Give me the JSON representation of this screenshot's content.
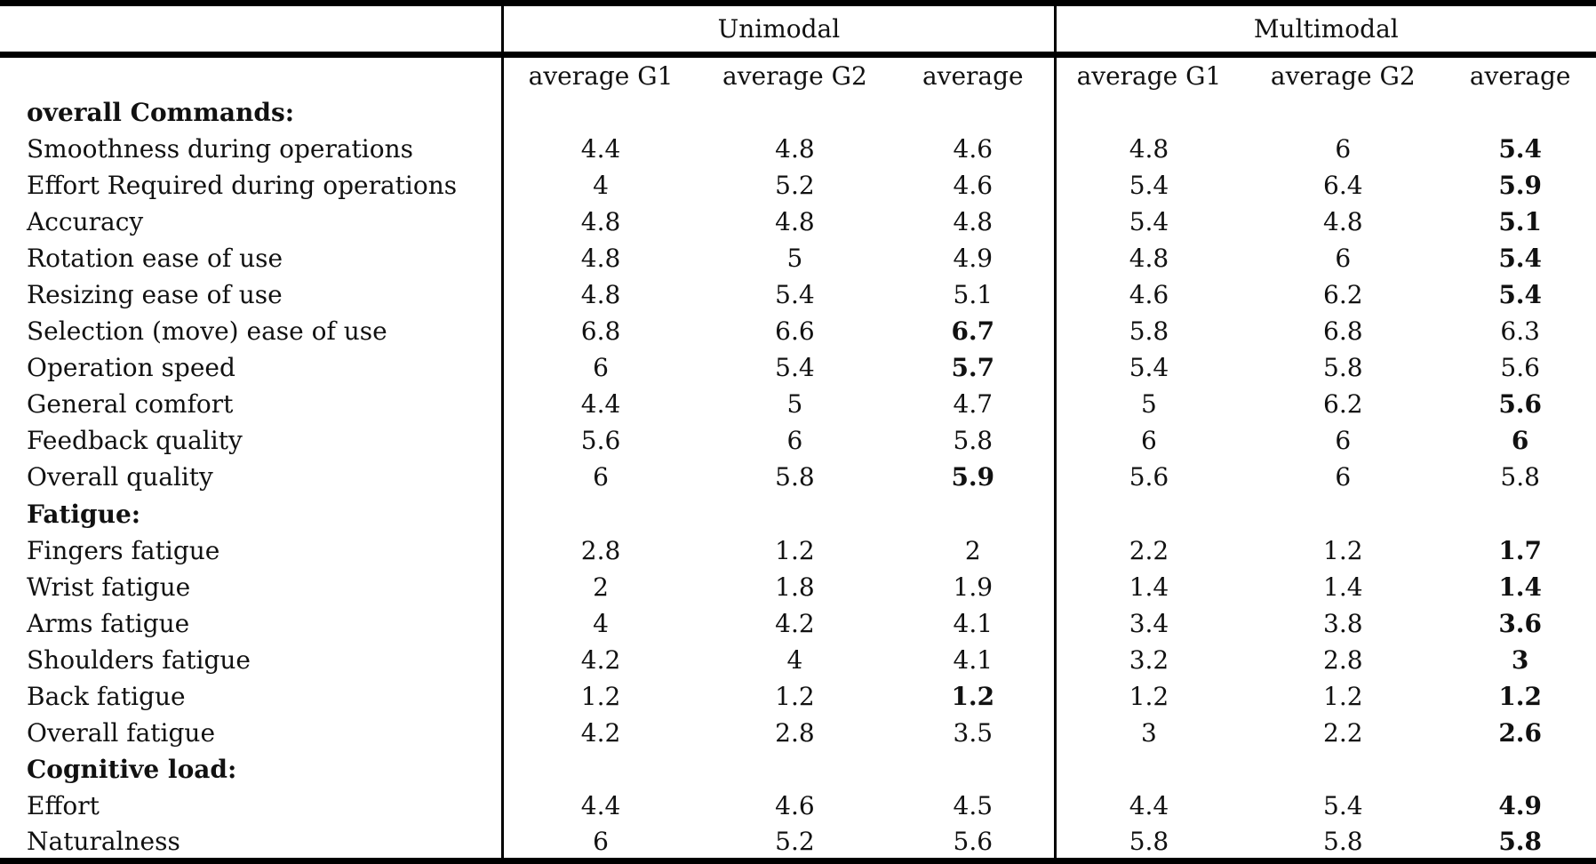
{
  "table": {
    "group_headers": [
      "Unimodal",
      "Multimodal"
    ],
    "sub_headers": [
      "average G1",
      "average G2",
      "average",
      "average G1",
      "average G2",
      "average"
    ],
    "sections": [
      {
        "header": "overall Commands:",
        "rows": [
          {
            "label": "Smoothness during operations",
            "values": [
              "4.4",
              "4.8",
              "4.6",
              "4.8",
              "6",
              "5.4"
            ],
            "bold": [
              false,
              false,
              false,
              false,
              false,
              true
            ]
          },
          {
            "label": "Effort Required during operations",
            "values": [
              "4",
              "5.2",
              "4.6",
              "5.4",
              "6.4",
              "5.9"
            ],
            "bold": [
              false,
              false,
              false,
              false,
              false,
              true
            ]
          },
          {
            "label": "Accuracy",
            "values": [
              "4.8",
              "4.8",
              "4.8",
              "5.4",
              "4.8",
              "5.1"
            ],
            "bold": [
              false,
              false,
              false,
              false,
              false,
              true
            ]
          },
          {
            "label": "Rotation ease of use",
            "values": [
              "4.8",
              "5",
              "4.9",
              "4.8",
              "6",
              "5.4"
            ],
            "bold": [
              false,
              false,
              false,
              false,
              false,
              true
            ]
          },
          {
            "label": "Resizing ease of use",
            "values": [
              "4.8",
              "5.4",
              "5.1",
              "4.6",
              "6.2",
              "5.4"
            ],
            "bold": [
              false,
              false,
              false,
              false,
              false,
              true
            ]
          },
          {
            "label": "Selection (move) ease of use",
            "values": [
              "6.8",
              "6.6",
              "6.7",
              "5.8",
              "6.8",
              "6.3"
            ],
            "bold": [
              false,
              false,
              true,
              false,
              false,
              false
            ]
          },
          {
            "label": "Operation speed",
            "values": [
              "6",
              "5.4",
              "5.7",
              "5.4",
              "5.8",
              "5.6"
            ],
            "bold": [
              false,
              false,
              true,
              false,
              false,
              false
            ]
          },
          {
            "label": "General comfort",
            "values": [
              "4.4",
              "5",
              "4.7",
              "5",
              "6.2",
              "5.6"
            ],
            "bold": [
              false,
              false,
              false,
              false,
              false,
              true
            ]
          },
          {
            "label": "Feedback quality",
            "values": [
              "5.6",
              "6",
              "5.8",
              "6",
              "6",
              "6"
            ],
            "bold": [
              false,
              false,
              false,
              false,
              false,
              true
            ]
          },
          {
            "label": "Overall quality",
            "values": [
              "6",
              "5.8",
              "5.9",
              "5.6",
              "6",
              "5.8"
            ],
            "bold": [
              false,
              false,
              true,
              false,
              false,
              false
            ]
          }
        ]
      },
      {
        "header": "Fatigue:",
        "rows": [
          {
            "label": "Fingers fatigue",
            "values": [
              "2.8",
              "1.2",
              "2",
              "2.2",
              "1.2",
              "1.7"
            ],
            "bold": [
              false,
              false,
              false,
              false,
              false,
              true
            ]
          },
          {
            "label": "Wrist fatigue",
            "values": [
              "2",
              "1.8",
              "1.9",
              "1.4",
              "1.4",
              "1.4"
            ],
            "bold": [
              false,
              false,
              false,
              false,
              false,
              true
            ]
          },
          {
            "label": "Arms fatigue",
            "values": [
              "4",
              "4.2",
              "4.1",
              "3.4",
              "3.8",
              "3.6"
            ],
            "bold": [
              false,
              false,
              false,
              false,
              false,
              true
            ]
          },
          {
            "label": "Shoulders fatigue",
            "values": [
              "4.2",
              "4",
              "4.1",
              "3.2",
              "2.8",
              "3"
            ],
            "bold": [
              false,
              false,
              false,
              false,
              false,
              true
            ]
          },
          {
            "label": "Back fatigue",
            "values": [
              "1.2",
              "1.2",
              "1.2",
              "1.2",
              "1.2",
              "1.2"
            ],
            "bold": [
              false,
              false,
              true,
              false,
              false,
              true
            ]
          },
          {
            "label": "Overall fatigue",
            "values": [
              "4.2",
              "2.8",
              "3.5",
              "3",
              "2.2",
              "2.6"
            ],
            "bold": [
              false,
              false,
              false,
              false,
              false,
              true
            ]
          }
        ]
      },
      {
        "header": "Cognitive load:",
        "rows": [
          {
            "label": "Effort",
            "values": [
              "4.4",
              "4.6",
              "4.5",
              "4.4",
              "5.4",
              "4.9"
            ],
            "bold": [
              false,
              false,
              false,
              false,
              false,
              true
            ]
          },
          {
            "label": "Naturalness",
            "values": [
              "6",
              "5.2",
              "5.6",
              "5.8",
              "5.8",
              "5.8"
            ],
            "bold": [
              false,
              false,
              false,
              false,
              false,
              true
            ]
          }
        ]
      }
    ]
  },
  "colors": {
    "rule": "#000000",
    "text": "#111111",
    "background": "#ffffff"
  }
}
